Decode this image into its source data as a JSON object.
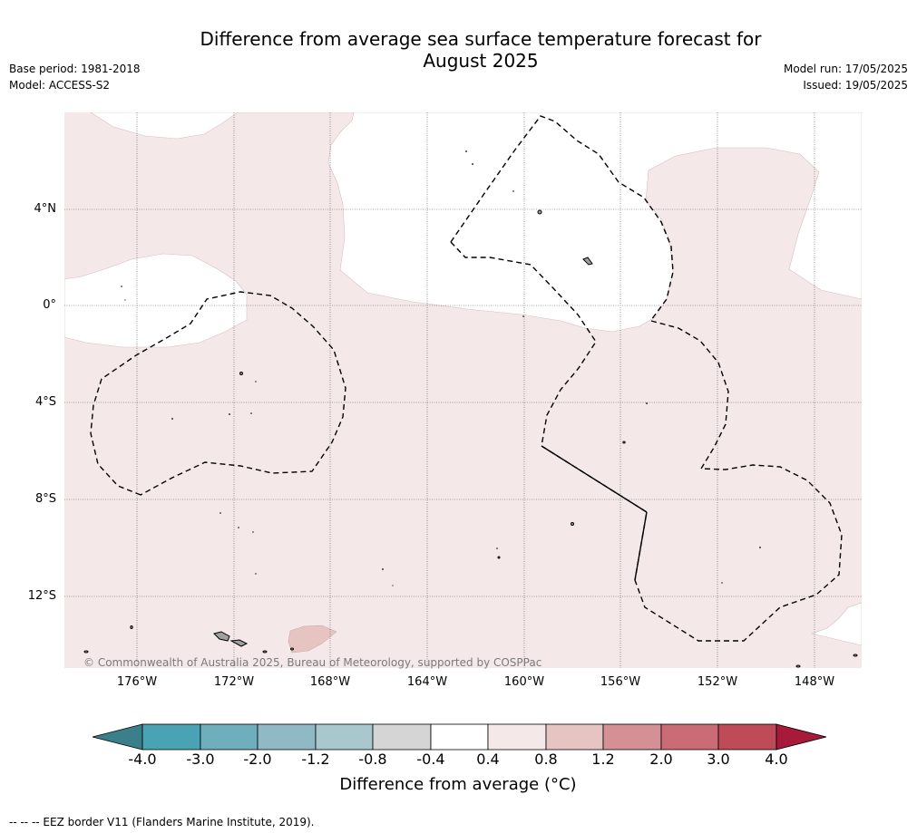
{
  "header": {
    "title_line1": "Difference from average sea surface temperature forecast for",
    "title_line2": "August 2025",
    "base_period": "Base period: 1981-2018",
    "model": "Model: ACCESS-S2",
    "model_run": "Model run: 17/05/2025",
    "issued": "Issued: 19/05/2025"
  },
  "map": {
    "lat_labels": [
      "4°N",
      "0°",
      "4°S",
      "8°S",
      "12°S"
    ],
    "lon_labels": [
      "176°W",
      "172°W",
      "168°W",
      "164°W",
      "160°W",
      "156°W",
      "152°W",
      "148°W"
    ],
    "credit": "© Commonwealth of Australia 2025, Bureau of Meteorology, supported by COSPPac",
    "colors": {
      "anomaly_0_4_to_0_8": "#f4e9e8",
      "anomaly_0_8_to_1_2": "#e6c4c2",
      "land": "#a0a0a0",
      "eez_border": "#000000"
    }
  },
  "colorbar": {
    "ticks": [
      "-4.0",
      "-3.0",
      "-2.0",
      "-1.2",
      "-0.8",
      "-0.4",
      "0.4",
      "0.8",
      "1.2",
      "2.0",
      "3.0",
      "4.0"
    ],
    "colors": [
      "#3a7f8a",
      "#4aa3b5",
      "#6eaebd",
      "#8fb9c4",
      "#a9c8ce",
      "#d5d5d5",
      "#ffffff",
      "#f4e9e8",
      "#e6c4c2",
      "#d59095",
      "#cb6b76",
      "#bf4a58",
      "#a81a3a"
    ],
    "label": "Difference from average (°C)"
  },
  "footer": {
    "eez_note": "--  --  -- EEZ border V11 (Flanders Marine Institute, 2019)."
  }
}
